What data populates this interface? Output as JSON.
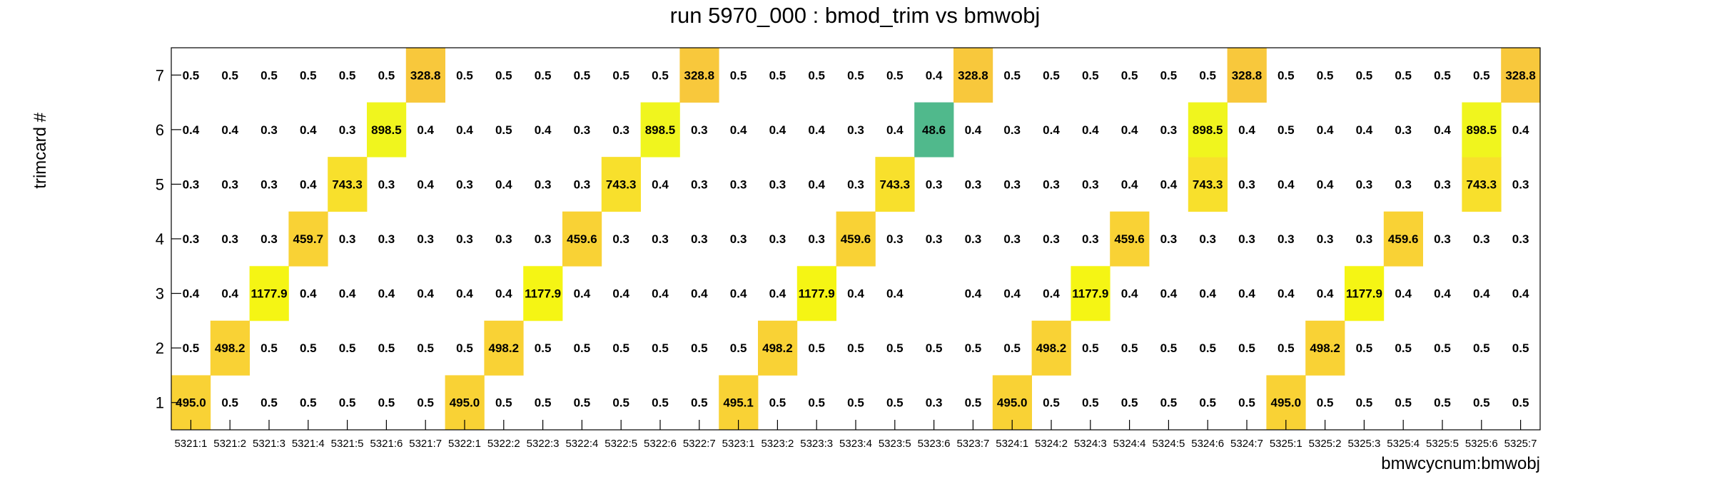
{
  "chart_data": {
    "type": "heatmap",
    "title": "run 5970_000 : bmod_trim vs bmwobj",
    "xlabel": "bmwcycnum:bmwobj",
    "ylabel": "trimcard #",
    "x_categories": [
      "5321:1",
      "5321:2",
      "5321:3",
      "5321:4",
      "5321:5",
      "5321:6",
      "5321:7",
      "5322:1",
      "5322:2",
      "5322:3",
      "5322:4",
      "5322:5",
      "5322:6",
      "5322:7",
      "5323:1",
      "5323:2",
      "5323:3",
      "5323:4",
      "5323:5",
      "5323:6",
      "5323:7",
      "5324:1",
      "5324:2",
      "5324:3",
      "5324:4",
      "5324:5",
      "5324:6",
      "5324:7",
      "5325:1",
      "5325:2",
      "5325:3",
      "5325:4",
      "5325:5",
      "5325:6",
      "5325:7"
    ],
    "y_categories": [
      "1",
      "2",
      "3",
      "4",
      "5",
      "6",
      "7"
    ],
    "values": [
      [
        495.0,
        0.5,
        0.5,
        0.5,
        0.5,
        0.5,
        0.5,
        495.0,
        0.5,
        0.5,
        0.5,
        0.5,
        0.5,
        0.5,
        495.1,
        0.5,
        0.5,
        0.5,
        0.5,
        0.3,
        0.5,
        495.0,
        0.5,
        0.5,
        0.5,
        0.5,
        0.5,
        0.5,
        495.0,
        0.5,
        0.5,
        0.5,
        0.5,
        0.5,
        0.5
      ],
      [
        0.5,
        498.2,
        0.5,
        0.5,
        0.5,
        0.5,
        0.5,
        0.5,
        498.2,
        0.5,
        0.5,
        0.5,
        0.5,
        0.5,
        0.5,
        498.2,
        0.5,
        0.5,
        0.5,
        0.5,
        0.5,
        0.5,
        498.2,
        0.5,
        0.5,
        0.5,
        0.5,
        0.5,
        0.5,
        498.2,
        0.5,
        0.5,
        0.5,
        0.5,
        0.5
      ],
      [
        0.4,
        0.4,
        1177.9,
        0.4,
        0.4,
        0.4,
        0.4,
        0.4,
        0.4,
        1177.9,
        0.4,
        0.4,
        0.4,
        0.4,
        0.4,
        0.4,
        1177.9,
        0.4,
        0.4,
        null,
        0.4,
        0.4,
        0.4,
        1177.9,
        0.4,
        0.4,
        0.4,
        0.4,
        0.4,
        0.4,
        1177.9,
        0.4,
        0.4,
        0.4,
        0.4
      ],
      [
        0.3,
        0.3,
        0.3,
        459.7,
        0.3,
        0.3,
        0.3,
        0.3,
        0.3,
        0.3,
        459.6,
        0.3,
        0.3,
        0.3,
        0.3,
        0.3,
        0.3,
        459.6,
        0.3,
        0.3,
        0.3,
        0.3,
        0.3,
        0.3,
        459.6,
        0.3,
        0.3,
        0.3,
        0.3,
        0.3,
        0.3,
        459.6,
        0.3,
        0.3,
        0.3
      ],
      [
        0.3,
        0.3,
        0.3,
        0.4,
        743.3,
        0.3,
        0.4,
        0.3,
        0.4,
        0.3,
        0.3,
        743.3,
        0.4,
        0.3,
        0.3,
        0.3,
        0.4,
        0.3,
        743.3,
        0.3,
        0.3,
        0.3,
        0.3,
        0.3,
        0.4,
        0.4,
        743.3,
        0.3,
        0.4,
        0.4,
        0.3,
        0.3,
        0.3,
        743.3,
        0.3
      ],
      [
        0.4,
        0.4,
        0.3,
        0.4,
        0.3,
        898.5,
        0.4,
        0.4,
        0.5,
        0.4,
        0.3,
        0.3,
        898.5,
        0.3,
        0.4,
        0.4,
        0.4,
        0.3,
        0.4,
        48.6,
        0.4,
        0.3,
        0.4,
        0.4,
        0.4,
        0.3,
        898.5,
        0.4,
        0.5,
        0.4,
        0.4,
        0.3,
        0.4,
        898.5,
        0.4
      ],
      [
        0.5,
        0.5,
        0.5,
        0.5,
        0.5,
        0.5,
        328.8,
        0.5,
        0.5,
        0.5,
        0.5,
        0.5,
        0.5,
        328.8,
        0.5,
        0.5,
        0.5,
        0.5,
        0.5,
        0.4,
        328.8,
        0.5,
        0.5,
        0.5,
        0.5,
        0.5,
        0.5,
        328.8,
        0.5,
        0.5,
        0.5,
        0.5,
        0.5,
        0.5,
        328.8
      ]
    ],
    "colors": {
      "high": "#f5f514",
      "mid": "#f8c83c",
      "low": "#50b98c",
      "frame": "#000000"
    },
    "grid": false,
    "legend": "none"
  }
}
